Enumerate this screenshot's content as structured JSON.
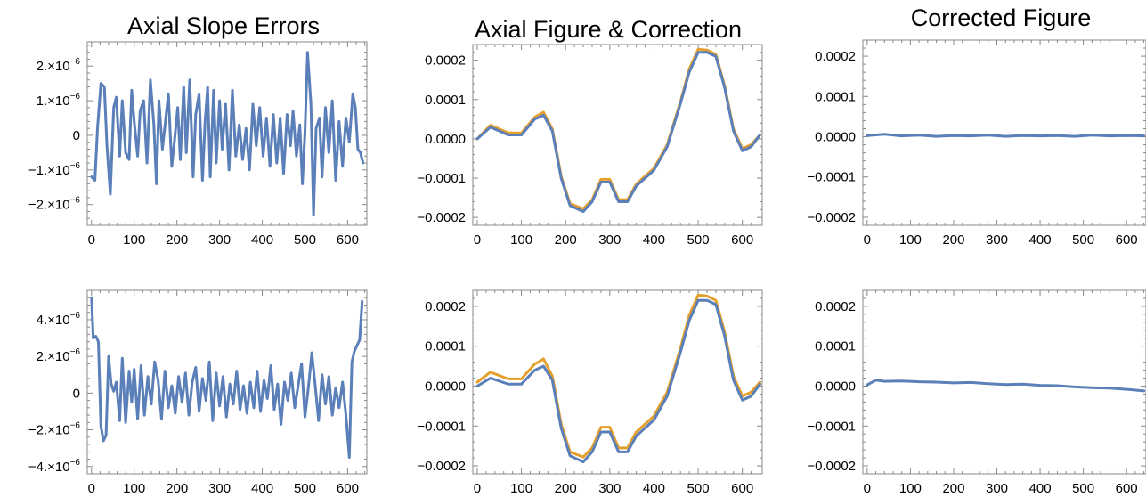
{
  "columns": [
    {
      "title": "Axial Slope Errors"
    },
    {
      "title": "Axial Figure & Correction"
    },
    {
      "title": "Corrected Figure"
    }
  ],
  "colors": {
    "series_primary": "#5B7FB8",
    "series_secondary": "#E59F2D",
    "frame": "#888888"
  },
  "chart_data": [
    {
      "type": "line",
      "panel": "row1-col1",
      "title": "Axial Slope Errors",
      "xlim": [
        -10,
        645
      ],
      "ylim": [
        -2.6e-06,
        2.7e-06
      ],
      "xticks": [
        0,
        100,
        200,
        300,
        400,
        500,
        600
      ],
      "xtick_labels": [
        "0",
        "100",
        "200",
        "300",
        "400",
        "500",
        "600"
      ],
      "yticks": [
        2e-06,
        1e-06,
        0,
        -1e-06,
        -2e-06
      ],
      "ytick_labels": [
        {
          "base": "2.×10",
          "exp": "−6"
        },
        {
          "base": "1.×10",
          "exp": "−6"
        },
        {
          "base": "0",
          "exp": ""
        },
        {
          "base": "−1.×10",
          "exp": "−6"
        },
        {
          "base": "−2.×10",
          "exp": "−6"
        }
      ],
      "grid": false,
      "series": [
        {
          "color": "#5B7FB8",
          "x": [
            0,
            8,
            14,
            22,
            30,
            36,
            44,
            52,
            58,
            66,
            72,
            80,
            88,
            94,
            100,
            108,
            114,
            122,
            130,
            138,
            146,
            152,
            158,
            166,
            174,
            180,
            188,
            194,
            202,
            208,
            216,
            222,
            230,
            238,
            244,
            252,
            260,
            266,
            272,
            278,
            286,
            292,
            300,
            306,
            314,
            322,
            330,
            338,
            346,
            354,
            362,
            370,
            378,
            386,
            394,
            402,
            410,
            418,
            426,
            434,
            442,
            450,
            458,
            466,
            472,
            480,
            488,
            494,
            500,
            506,
            514,
            520,
            526,
            534,
            540,
            548,
            556,
            564,
            572,
            580,
            588,
            596,
            604,
            612,
            618,
            624,
            630,
            636
          ],
          "y": [
            -1.2e-06,
            -1.3e-06,
            2e-07,
            1.5e-06,
            1.4e-06,
            -3e-07,
            -1.7e-06,
            8e-07,
            1.1e-06,
            -6e-07,
            1e-06,
            -5e-07,
            -7e-07,
            1.3e-06,
            4e-07,
            -6e-07,
            7e-07,
            1e-06,
            -8e-07,
            1.6e-06,
            3e-07,
            -1.4e-06,
            1e-06,
            -4e-07,
            5e-07,
            1.2e-06,
            -9e-07,
            -2e-07,
            8e-07,
            -7e-07,
            1.4e-06,
            -5e-07,
            1.6e-06,
            -1.2e-06,
            6e-07,
            1.2e-06,
            -1.3e-06,
            4e-07,
            1.4e-06,
            -1.2e-06,
            1.3e-06,
            -8e-07,
            1e-06,
            -4e-07,
            9e-07,
            -1e-06,
            1.3e-06,
            -6e-07,
            3e-07,
            -7e-07,
            2e-07,
            -1e-06,
            9e-07,
            -3e-07,
            8e-07,
            -6e-07,
            5e-07,
            -9e-07,
            6e-07,
            -8e-07,
            5e-07,
            -1.1e-06,
            6e-07,
            -3e-07,
            7e-07,
            -6e-07,
            3e-07,
            -1.4e-06,
            1e-07,
            2.4e-06,
            9e-07,
            -2.3e-06,
            2e-07,
            5e-07,
            -1.2e-06,
            8e-07,
            -5e-07,
            1e-06,
            -1.3e-06,
            4e-07,
            -9e-07,
            5e-07,
            -2e-07,
            1.2e-06,
            8e-07,
            -4e-07,
            -5e-07,
            -8e-07
          ]
        }
      ]
    },
    {
      "type": "line",
      "panel": "row1-col2",
      "title": "Axial Figure & Correction",
      "xlim": [
        -10,
        645
      ],
      "ylim": [
        -0.00022,
        0.00024
      ],
      "xticks": [
        0,
        100,
        200,
        300,
        400,
        500,
        600
      ],
      "xtick_labels": [
        "0",
        "100",
        "200",
        "300",
        "400",
        "500",
        "600"
      ],
      "yticks": [
        0.0002,
        0.0001,
        0,
        -0.0001,
        -0.0002
      ],
      "ytick_labels": [
        {
          "base": "0.0002",
          "exp": ""
        },
        {
          "base": "0.0001",
          "exp": ""
        },
        {
          "base": "0.0000",
          "exp": ""
        },
        {
          "base": "−0.0001",
          "exp": ""
        },
        {
          "base": "−0.0002",
          "exp": ""
        }
      ],
      "grid": false,
      "series": [
        {
          "color": "#5B7FB8",
          "x": [
            0,
            30,
            70,
            100,
            130,
            150,
            170,
            190,
            210,
            240,
            260,
            280,
            300,
            320,
            340,
            360,
            380,
            400,
            430,
            460,
            480,
            500,
            520,
            540,
            560,
            580,
            600,
            620,
            640
          ],
          "y": [
            0,
            3e-05,
            1e-05,
            1e-05,
            5e-05,
            6e-05,
            2e-05,
            -0.0001,
            -0.00017,
            -0.000185,
            -0.00016,
            -0.00011,
            -0.00011,
            -0.00016,
            -0.00016,
            -0.00012,
            -0.0001,
            -8e-05,
            -2e-05,
            9e-05,
            0.00017,
            0.00022,
            0.00022,
            0.00021,
            0.00013,
            2e-05,
            -3e-05,
            -2e-05,
            1e-05
          ]
        },
        {
          "color": "#E59F2D",
          "x": [
            0,
            30,
            70,
            100,
            130,
            150,
            170,
            190,
            210,
            240,
            260,
            280,
            300,
            320,
            340,
            360,
            380,
            400,
            430,
            460,
            480,
            500,
            520,
            540,
            560,
            580,
            600,
            620,
            640
          ],
          "y": [
            0,
            3.5e-05,
            1.5e-05,
            1.5e-05,
            5.5e-05,
            6.8e-05,
            2.5e-05,
            -9.5e-05,
            -0.000165,
            -0.000178,
            -0.000155,
            -0.000103,
            -0.000103,
            -0.000155,
            -0.000155,
            -0.000115,
            -9.5e-05,
            -7.5e-05,
            -1.5e-05,
            9.5e-05,
            0.000178,
            0.000228,
            0.000226,
            0.000215,
            0.000135,
            2.5e-05,
            -2.5e-05,
            -1.5e-05,
            1e-05
          ]
        }
      ]
    },
    {
      "type": "line",
      "panel": "row1-col3",
      "title": "Corrected Figure",
      "xlim": [
        -10,
        645
      ],
      "ylim": [
        -0.00022,
        0.00024
      ],
      "xticks": [
        0,
        100,
        200,
        300,
        400,
        500,
        600
      ],
      "xtick_labels": [
        "0",
        "100",
        "200",
        "300",
        "400",
        "500",
        "600"
      ],
      "yticks": [
        0.0002,
        0.0001,
        0,
        -0.0001,
        -0.0002
      ],
      "ytick_labels": [
        {
          "base": "0.0002",
          "exp": ""
        },
        {
          "base": "0.0001",
          "exp": ""
        },
        {
          "base": "0.0000",
          "exp": ""
        },
        {
          "base": "−0.0001",
          "exp": ""
        },
        {
          "base": "−0.0002",
          "exp": ""
        }
      ],
      "grid": false,
      "series": [
        {
          "color": "#5B7FB8",
          "x": [
            0,
            40,
            80,
            120,
            160,
            200,
            240,
            280,
            320,
            360,
            400,
            440,
            480,
            520,
            560,
            600,
            640
          ],
          "y": [
            3e-06,
            6e-06,
            2e-06,
            4e-06,
            1e-06,
            3e-06,
            2e-06,
            4e-06,
            1e-06,
            3e-06,
            2e-06,
            3e-06,
            1e-06,
            4e-06,
            2e-06,
            3e-06,
            2e-06
          ]
        }
      ]
    },
    {
      "type": "line",
      "panel": "row2-col1",
      "xlim": [
        -10,
        645
      ],
      "ylim": [
        -4.4e-06,
        5.6e-06
      ],
      "xticks": [
        0,
        100,
        200,
        300,
        400,
        500,
        600
      ],
      "xtick_labels": [
        "0",
        "100",
        "200",
        "300",
        "400",
        "500",
        "600"
      ],
      "yticks": [
        4e-06,
        2e-06,
        0,
        -2e-06,
        -4e-06
      ],
      "ytick_labels": [
        {
          "base": "4.×10",
          "exp": "−6"
        },
        {
          "base": "2.×10",
          "exp": "−6"
        },
        {
          "base": "0",
          "exp": ""
        },
        {
          "base": "−2.×10",
          "exp": "−6"
        },
        {
          "base": "−4.×10",
          "exp": "−6"
        }
      ],
      "grid": false,
      "series": [
        {
          "color": "#5B7FB8",
          "x": [
            0,
            4,
            10,
            16,
            22,
            28,
            34,
            40,
            46,
            52,
            58,
            66,
            72,
            80,
            88,
            94,
            100,
            108,
            116,
            124,
            132,
            140,
            148,
            156,
            164,
            172,
            180,
            188,
            196,
            204,
            212,
            220,
            228,
            236,
            244,
            252,
            260,
            268,
            276,
            284,
            292,
            300,
            308,
            316,
            324,
            332,
            340,
            348,
            356,
            364,
            372,
            380,
            388,
            396,
            404,
            412,
            420,
            428,
            436,
            444,
            452,
            460,
            468,
            476,
            484,
            492,
            500,
            508,
            516,
            524,
            532,
            540,
            548,
            556,
            564,
            572,
            580,
            588,
            596,
            604,
            610,
            616,
            622,
            628,
            634
          ],
          "y": [
            5.2e-06,
            3e-06,
            3.1e-06,
            2.8e-06,
            -1.8e-06,
            -2.6e-06,
            -2.3e-06,
            2e-06,
            5e-07,
            1e-07,
            6e-07,
            -1.5e-06,
            1.9e-06,
            -1.6e-06,
            1.2e-06,
            -5e-07,
            1.3e-06,
            -1.4e-06,
            1.5e-06,
            -1.2e-06,
            9e-07,
            -6e-07,
            1.7e-06,
            7e-07,
            -1.4e-06,
            1.2e-06,
            -8e-07,
            4e-07,
            -1.1e-06,
            9e-07,
            -5e-07,
            1.1e-06,
            -1.2e-06,
            6e-07,
            1.4e-06,
            -1e-06,
            8e-07,
            -4e-07,
            1.7e-06,
            -1.5e-06,
            1.1e-06,
            -7e-07,
            9e-07,
            -1.3e-06,
            5e-07,
            -6e-07,
            1.2e-06,
            -9e-07,
            4e-07,
            -1.1e-06,
            6e-07,
            -8e-07,
            1.2e-06,
            -1e-06,
            7e-07,
            -3e-07,
            1.5e-06,
            -9e-07,
            5e-07,
            -1.7e-06,
            6e-07,
            -4e-07,
            1.1e-06,
            -8e-07,
            4e-07,
            1.6e-06,
            -1.3e-06,
            3e-07,
            2.2e-06,
            4e-07,
            -1.5e-06,
            1e-06,
            -6e-07,
            9e-07,
            -1.2e-06,
            3e-07,
            -8e-07,
            6e-07,
            -1.2e-06,
            -3.5e-06,
            1.7e-06,
            2.3e-06,
            2.6e-06,
            2.9e-06,
            5e-06
          ]
        }
      ]
    },
    {
      "type": "line",
      "panel": "row2-col2",
      "xlim": [
        -10,
        645
      ],
      "ylim": [
        -0.00022,
        0.00024
      ],
      "xticks": [
        0,
        100,
        200,
        300,
        400,
        500,
        600
      ],
      "xtick_labels": [
        "0",
        "100",
        "200",
        "300",
        "400",
        "500",
        "600"
      ],
      "yticks": [
        0.0002,
        0.0001,
        0,
        -0.0001,
        -0.0002
      ],
      "ytick_labels": [
        {
          "base": "0.0002",
          "exp": ""
        },
        {
          "base": "0.0001",
          "exp": ""
        },
        {
          "base": "0.0000",
          "exp": ""
        },
        {
          "base": "−0.0001",
          "exp": ""
        },
        {
          "base": "−0.0002",
          "exp": ""
        }
      ],
      "grid": false,
      "series": [
        {
          "color": "#5B7FB8",
          "x": [
            0,
            30,
            70,
            100,
            130,
            150,
            170,
            190,
            210,
            240,
            260,
            280,
            300,
            320,
            340,
            360,
            380,
            400,
            430,
            460,
            480,
            500,
            520,
            540,
            560,
            580,
            600,
            620,
            640
          ],
          "y": [
            0,
            2e-05,
            5e-06,
            5e-06,
            4e-05,
            5e-05,
            1.5e-05,
            -0.000105,
            -0.000175,
            -0.00019,
            -0.000165,
            -0.000115,
            -0.000115,
            -0.000165,
            -0.000165,
            -0.000125,
            -0.000105,
            -8.5e-05,
            -2.5e-05,
            8.5e-05,
            0.000165,
            0.000215,
            0.000215,
            0.000205,
            0.000125,
            1.5e-05,
            -3.5e-05,
            -2.5e-05,
            5e-06
          ]
        },
        {
          "color": "#E59F2D",
          "x": [
            0,
            30,
            70,
            100,
            130,
            150,
            170,
            190,
            210,
            240,
            260,
            280,
            300,
            320,
            340,
            360,
            380,
            400,
            430,
            460,
            480,
            500,
            520,
            540,
            560,
            580,
            600,
            620,
            640
          ],
          "y": [
            1e-05,
            3.5e-05,
            1.8e-05,
            1.8e-05,
            5.5e-05,
            6.8e-05,
            2.5e-05,
            -9.5e-05,
            -0.000165,
            -0.000178,
            -0.000155,
            -0.000103,
            -0.000103,
            -0.000155,
            -0.000155,
            -0.000115,
            -9.5e-05,
            -7.5e-05,
            -1.5e-05,
            9.5e-05,
            0.000178,
            0.000228,
            0.000226,
            0.000215,
            0.000135,
            2.5e-05,
            -2.5e-05,
            -1.5e-05,
            1e-05
          ]
        }
      ]
    },
    {
      "type": "line",
      "panel": "row2-col3",
      "xlim": [
        -10,
        645
      ],
      "ylim": [
        -0.00022,
        0.00024
      ],
      "xticks": [
        0,
        100,
        200,
        300,
        400,
        500,
        600
      ],
      "xtick_labels": [
        "0",
        "100",
        "200",
        "300",
        "400",
        "500",
        "600"
      ],
      "yticks": [
        0.0002,
        0.0001,
        0,
        -0.0001,
        -0.0002
      ],
      "ytick_labels": [
        {
          "base": "0.0002",
          "exp": ""
        },
        {
          "base": "0.0001",
          "exp": ""
        },
        {
          "base": "0.0000",
          "exp": ""
        },
        {
          "base": "−0.0001",
          "exp": ""
        },
        {
          "base": "−0.0002",
          "exp": ""
        }
      ],
      "grid": false,
      "series": [
        {
          "color": "#5B7FB8",
          "x": [
            0,
            20,
            40,
            80,
            120,
            160,
            200,
            240,
            280,
            320,
            360,
            400,
            440,
            480,
            520,
            560,
            600,
            640
          ],
          "y": [
            3e-06,
            1.5e-05,
            1.2e-05,
            1.3e-05,
            1.1e-05,
            1e-05,
            8e-06,
            9e-06,
            6e-06,
            4e-06,
            5e-06,
            2e-06,
            1e-06,
            -2e-06,
            -4e-06,
            -5e-06,
            -8e-06,
            -1.2e-05
          ]
        }
      ]
    }
  ]
}
